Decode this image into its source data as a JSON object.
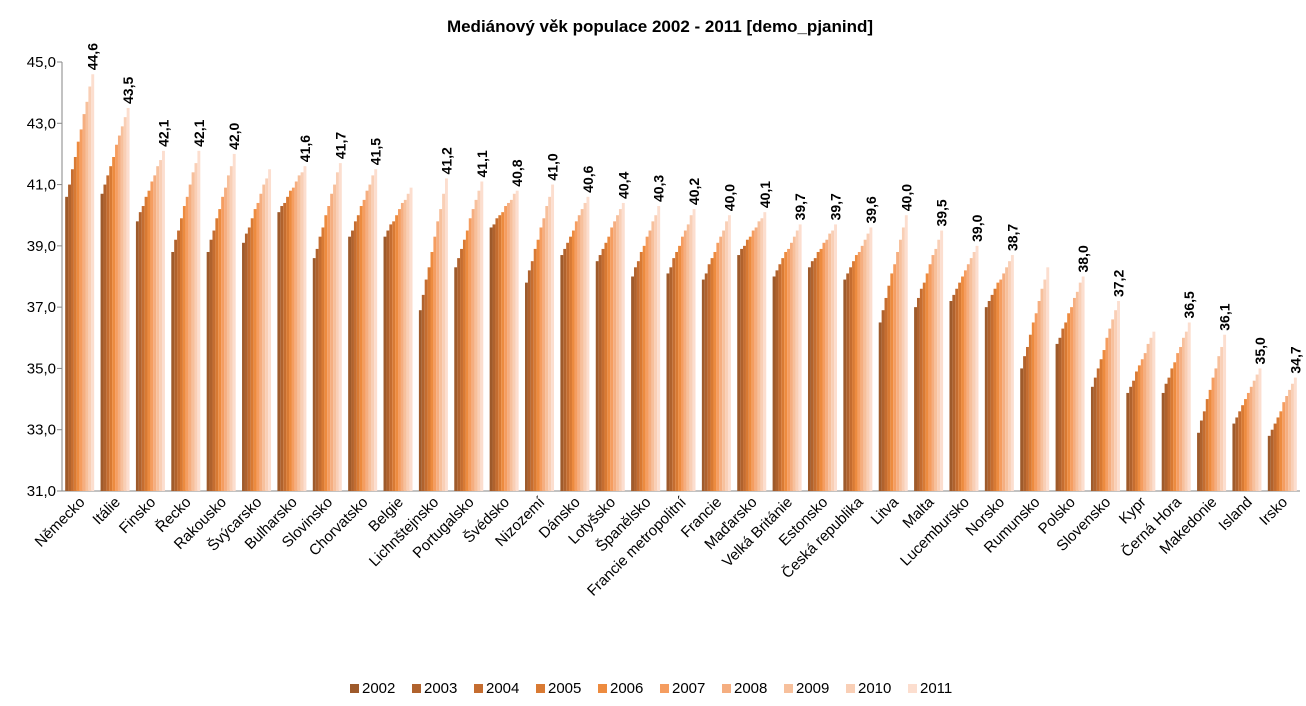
{
  "chart_data": {
    "type": "bar",
    "title": "Mediánový věk populace 2002 - 2011 [demo_pjanind]",
    "categories": [
      "Německo",
      "Itálie",
      "Finsko",
      "Řecko",
      "Rakousko",
      "Švýcarsko",
      "Bulharsko",
      "Slovinsko",
      "Chorvatsko",
      "Belgie",
      "Lichnštejnsko",
      "Portugalsko",
      "Švédsko",
      "Nizozemí",
      "Dánsko",
      "Lotyšsko",
      "Španělsko",
      "Francie metropolitní",
      "Francie",
      "Maďarsko",
      "Velká Británie",
      "Estonsko",
      "Česká republika",
      "Litva",
      "Malta",
      "Lucembursko",
      "Norsko",
      "Rumunsko",
      "Polsko",
      "Slovensko",
      "Kypr",
      "Černá Hora",
      "Makedonie",
      "Island",
      "Irsko"
    ],
    "series": [
      {
        "name": "2002",
        "color": "#9e5a2b",
        "values": [
          40.6,
          40.7,
          39.8,
          38.8,
          38.8,
          39.1,
          40.1,
          38.6,
          39.3,
          39.3,
          36.9,
          38.3,
          39.6,
          37.8,
          38.7,
          38.5,
          38.0,
          38.1,
          37.9,
          38.7,
          38.0,
          38.3,
          37.9,
          36.5,
          37.0,
          37.2,
          37.0,
          35.0,
          35.8,
          34.4,
          34.2,
          34.2,
          32.9,
          33.2,
          32.8
        ]
      },
      {
        "name": "2003",
        "color": "#b0622d",
        "values": [
          41.0,
          41.0,
          40.1,
          39.2,
          39.2,
          39.4,
          40.3,
          38.9,
          39.5,
          39.5,
          37.4,
          38.6,
          39.7,
          38.2,
          38.9,
          38.7,
          38.3,
          38.3,
          38.1,
          38.9,
          38.2,
          38.5,
          38.1,
          36.9,
          37.3,
          37.4,
          37.2,
          35.4,
          36.0,
          34.7,
          34.4,
          34.5,
          33.3,
          33.4,
          33.0
        ]
      },
      {
        "name": "2004",
        "color": "#c56d30",
        "values": [
          41.5,
          41.3,
          40.3,
          39.5,
          39.5,
          39.6,
          40.4,
          39.3,
          39.8,
          39.7,
          37.9,
          38.9,
          39.9,
          38.5,
          39.1,
          38.9,
          38.5,
          38.6,
          38.4,
          39.0,
          38.4,
          38.6,
          38.3,
          37.3,
          37.6,
          37.6,
          37.4,
          35.7,
          36.3,
          35.0,
          34.6,
          34.7,
          33.6,
          33.6,
          33.2
        ]
      },
      {
        "name": "2005",
        "color": "#d97a33",
        "values": [
          41.9,
          41.6,
          40.6,
          39.9,
          39.9,
          39.9,
          40.6,
          39.6,
          40.0,
          39.8,
          38.3,
          39.2,
          40.0,
          38.9,
          39.3,
          39.1,
          38.8,
          38.8,
          38.6,
          39.2,
          38.6,
          38.8,
          38.5,
          37.7,
          37.8,
          37.8,
          37.6,
          36.1,
          36.5,
          35.3,
          34.9,
          35.0,
          34.0,
          33.8,
          33.4
        ]
      },
      {
        "name": "2006",
        "color": "#ed8b3f",
        "values": [
          42.4,
          41.9,
          40.8,
          40.3,
          40.2,
          40.2,
          40.8,
          40.0,
          40.3,
          40.0,
          38.8,
          39.5,
          40.1,
          39.2,
          39.5,
          39.3,
          39.0,
          39.0,
          38.8,
          39.3,
          38.8,
          38.9,
          38.7,
          38.1,
          38.1,
          38.0,
          37.8,
          36.5,
          36.8,
          35.6,
          35.1,
          35.2,
          34.3,
          34.0,
          33.6
        ]
      },
      {
        "name": "2007",
        "color": "#f59d60",
        "values": [
          42.8,
          42.3,
          41.1,
          40.6,
          40.6,
          40.4,
          40.9,
          40.3,
          40.5,
          40.2,
          39.3,
          39.9,
          40.3,
          39.6,
          39.8,
          39.6,
          39.3,
          39.3,
          39.1,
          39.5,
          38.9,
          39.1,
          38.8,
          38.4,
          38.4,
          38.2,
          37.9,
          36.8,
          37.0,
          36.0,
          35.3,
          35.5,
          34.7,
          34.2,
          33.9
        ]
      },
      {
        "name": "2008",
        "color": "#f5ae80",
        "values": [
          43.3,
          42.6,
          41.3,
          41.0,
          40.9,
          40.7,
          41.1,
          40.7,
          40.8,
          40.4,
          39.8,
          40.2,
          40.4,
          39.9,
          40.0,
          39.8,
          39.5,
          39.5,
          39.3,
          39.6,
          39.1,
          39.2,
          39.0,
          38.8,
          38.7,
          38.4,
          38.1,
          37.2,
          37.3,
          36.3,
          35.5,
          35.7,
          35.0,
          34.4,
          34.1
        ]
      },
      {
        "name": "2009",
        "color": "#f7c09c",
        "values": [
          43.7,
          42.9,
          41.6,
          41.4,
          41.3,
          41.0,
          41.3,
          41.0,
          41.0,
          40.5,
          40.2,
          40.5,
          40.5,
          40.3,
          40.2,
          40.0,
          39.8,
          39.7,
          39.5,
          39.8,
          39.3,
          39.4,
          39.2,
          39.2,
          38.9,
          38.6,
          38.3,
          37.6,
          37.5,
          36.6,
          35.8,
          36.0,
          35.4,
          34.6,
          34.3
        ]
      },
      {
        "name": "2010",
        "color": "#f9cfb6",
        "values": [
          44.2,
          43.2,
          41.8,
          41.7,
          41.6,
          41.2,
          41.4,
          41.4,
          41.3,
          40.7,
          40.7,
          40.8,
          40.7,
          40.6,
          40.4,
          40.2,
          40.0,
          40.0,
          39.8,
          39.9,
          39.5,
          39.5,
          39.4,
          39.6,
          39.2,
          38.8,
          38.5,
          37.9,
          37.8,
          36.9,
          36.0,
          36.2,
          35.7,
          34.8,
          34.5
        ]
      },
      {
        "name": "2011",
        "color": "#fcdecf",
        "values": [
          44.6,
          43.5,
          42.1,
          42.1,
          42.0,
          41.5,
          41.6,
          41.7,
          41.5,
          40.9,
          41.2,
          41.1,
          40.8,
          41.0,
          40.6,
          40.4,
          40.3,
          40.2,
          40.0,
          40.1,
          39.7,
          39.7,
          39.6,
          40.0,
          39.5,
          39.0,
          38.7,
          38.3,
          38.0,
          37.2,
          36.2,
          36.5,
          36.1,
          35.0,
          34.7
        ],
        "value_labels": [
          "44,6",
          "43,5",
          "42,1",
          "42,1",
          "42,0",
          null,
          "41,6",
          "41,7",
          "41,5",
          null,
          "41,2",
          "41,1",
          "40,8",
          "41,0",
          "40,6",
          "40,4",
          "40,3",
          "40,2",
          "40,0",
          "40,1",
          "39,7",
          "39,7",
          "39,6",
          "40,0",
          "39,5",
          "39,0",
          "38,7",
          null,
          "38,0",
          "37,2",
          null,
          "36,5",
          "36,1",
          "35,0",
          "34,7"
        ]
      }
    ],
    "ylim": [
      31,
      45
    ],
    "yticks": [
      {
        "value": 31,
        "label": "31,0"
      },
      {
        "value": 33,
        "label": "33,0"
      },
      {
        "value": 35,
        "label": "35,0"
      },
      {
        "value": 37,
        "label": "37,0"
      },
      {
        "value": 39,
        "label": "39,0"
      },
      {
        "value": 41,
        "label": "41,0"
      },
      {
        "value": 43,
        "label": "43,0"
      },
      {
        "value": 45,
        "label": "45,0"
      }
    ],
    "legend": "bottom"
  }
}
